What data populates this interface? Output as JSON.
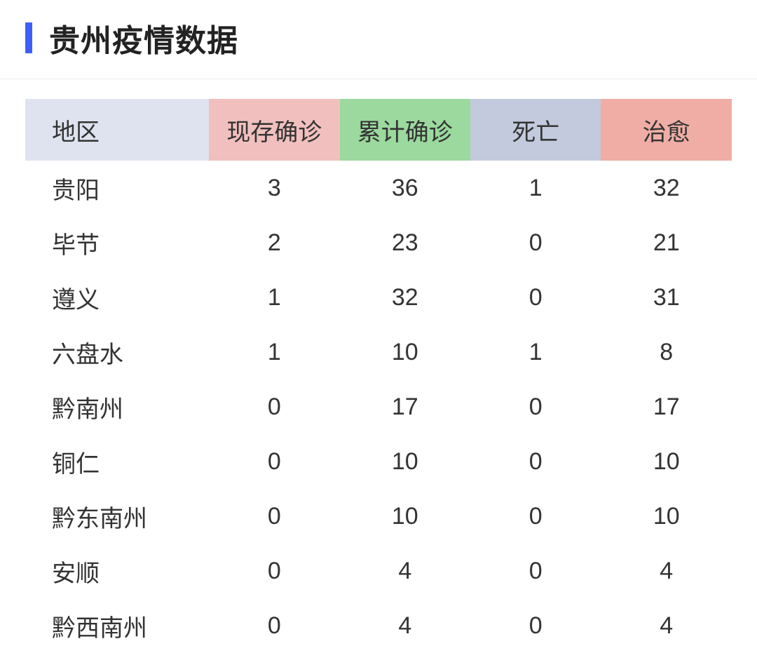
{
  "title": "贵州疫情数据",
  "header_colors": {
    "region": "#dfe3ef",
    "current": "#f1c0be",
    "total": "#9bd99e",
    "death": "#c3cadd",
    "cured": "#efada6"
  },
  "accent_color": "#3e5ff7",
  "columns": {
    "region": "地区",
    "current": "现存确诊",
    "total": "累计确诊",
    "death": "死亡",
    "cured": "治愈"
  },
  "rows": [
    {
      "region": "贵阳",
      "current": "3",
      "total": "36",
      "death": "1",
      "cured": "32"
    },
    {
      "region": "毕节",
      "current": "2",
      "total": "23",
      "death": "0",
      "cured": "21"
    },
    {
      "region": "遵义",
      "current": "1",
      "total": "32",
      "death": "0",
      "cured": "31"
    },
    {
      "region": "六盘水",
      "current": "1",
      "total": "10",
      "death": "1",
      "cured": "8"
    },
    {
      "region": "黔南州",
      "current": "0",
      "total": "17",
      "death": "0",
      "cured": "17"
    },
    {
      "region": "铜仁",
      "current": "0",
      "total": "10",
      "death": "0",
      "cured": "10"
    },
    {
      "region": "黔东南州",
      "current": "0",
      "total": "10",
      "death": "0",
      "cured": "10"
    },
    {
      "region": "安顺",
      "current": "0",
      "total": "4",
      "death": "0",
      "cured": "4"
    },
    {
      "region": "黔西南州",
      "current": "0",
      "total": "4",
      "death": "0",
      "cured": "4"
    }
  ]
}
